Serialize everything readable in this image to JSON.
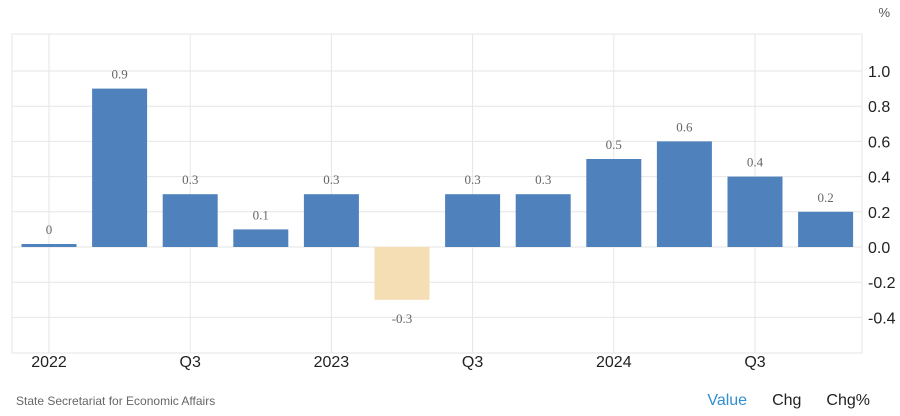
{
  "unit_label": "%",
  "source": "State Secretariat for Economic Affairs",
  "tabs": {
    "value": "Value",
    "chg": "Chg",
    "chg_pct": "Chg%"
  },
  "colors": {
    "positive": "#4f81bd",
    "negative": "#f5deb3",
    "grid": "#e6e6e6",
    "active_tab": "#2f8fd1"
  },
  "chart_data": {
    "type": "bar",
    "categories": [
      "Q1 2022",
      "Q2 2022",
      "Q3 2022",
      "Q4 2022",
      "Q1 2023",
      "Q2 2023",
      "Q3 2023",
      "Q4 2023",
      "Q1 2024",
      "Q2 2024",
      "Q3 2024",
      "Q4 2024"
    ],
    "values": [
      0.01,
      0.9,
      0.3,
      0.1,
      0.3,
      -0.3,
      0.3,
      0.3,
      0.5,
      0.6,
      0.4,
      0.2
    ],
    "data_labels": [
      "0",
      "0.9",
      "0.3",
      "0.1",
      "0.3",
      "-0.3",
      "0.3",
      "0.3",
      "0.5",
      "0.6",
      "0.4",
      "0.2"
    ],
    "x_tick_labels": [
      {
        "index": 0,
        "label": "2022"
      },
      {
        "index": 2,
        "label": "Q3"
      },
      {
        "index": 4,
        "label": "2023"
      },
      {
        "index": 6,
        "label": "Q3"
      },
      {
        "index": 8,
        "label": "2024"
      },
      {
        "index": 10,
        "label": "Q3"
      }
    ],
    "y_ticks": [
      "1.0",
      "0.8",
      "0.6",
      "0.4",
      "0.2",
      "0.0",
      "-0.2",
      "-0.4"
    ],
    "ylim": [
      -0.6,
      1.2
    ],
    "y_axis_position": "right",
    "grid": true
  }
}
